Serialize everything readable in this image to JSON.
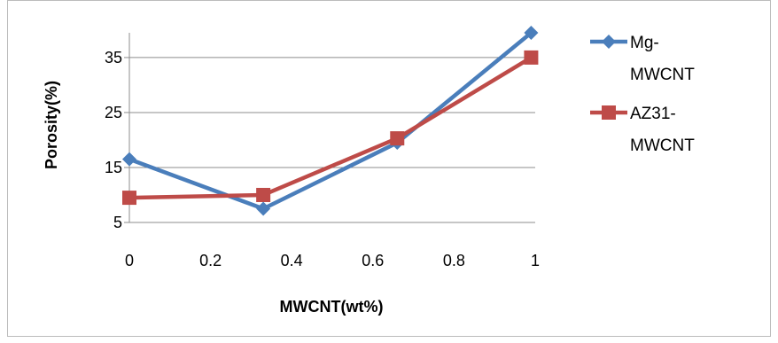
{
  "chart_data": {
    "type": "line",
    "title": "",
    "xlabel": "MWCNT(wt%)",
    "ylabel": "Porosity(%)",
    "xlim": [
      0,
      1
    ],
    "ylim": [
      5,
      40
    ],
    "x_ticks": [
      "0",
      "0.2",
      "0.4",
      "0.6",
      "0.8",
      "1"
    ],
    "y_ticks": [
      "5",
      "15",
      "25",
      "35"
    ],
    "grid": "horizontal",
    "legend": "right",
    "series": [
      {
        "name_lines": [
          "Mg-",
          "MWCNT"
        ],
        "marker": "diamond",
        "color": "#4a7ebb",
        "x": [
          0,
          0.33,
          0.66,
          0.99
        ],
        "values": [
          16.5,
          7.5,
          19.5,
          39.5
        ]
      },
      {
        "name_lines": [
          "AZ31-",
          "MWCNT"
        ],
        "marker": "square",
        "color": "#be4b48",
        "x": [
          0,
          0.33,
          0.66,
          0.99
        ],
        "values": [
          9.5,
          10,
          20.3,
          35
        ]
      }
    ]
  }
}
